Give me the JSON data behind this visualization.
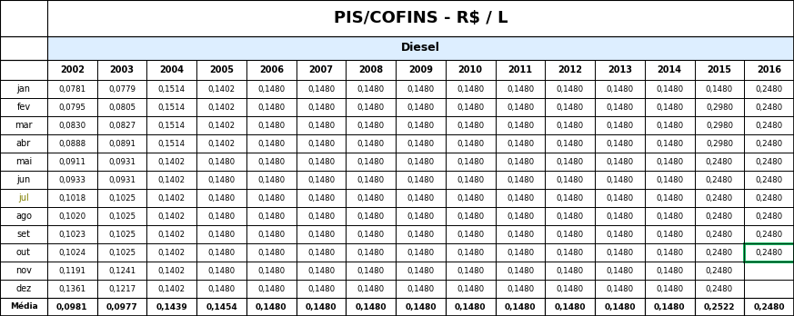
{
  "title": "PIS/COFINS - R$ / L",
  "subtitle": "Diesel",
  "years": [
    "2002",
    "2003",
    "2004",
    "2005",
    "2006",
    "2007",
    "2008",
    "2009",
    "2010",
    "2011",
    "2012",
    "2013",
    "2014",
    "2015",
    "2016"
  ],
  "months": [
    "jan",
    "fev",
    "mar",
    "abr",
    "mai",
    "jun",
    "jul",
    "ago",
    "set",
    "out",
    "nov",
    "dez"
  ],
  "media_label": "Média",
  "data": {
    "jan": [
      "0,0781",
      "0,0779",
      "0,1514",
      "0,1402",
      "0,1480",
      "0,1480",
      "0,1480",
      "0,1480",
      "0,1480",
      "0,1480",
      "0,1480",
      "0,1480",
      "0,1480",
      "0,1480",
      "0,2480"
    ],
    "fev": [
      "0,0795",
      "0,0805",
      "0,1514",
      "0,1402",
      "0,1480",
      "0,1480",
      "0,1480",
      "0,1480",
      "0,1480",
      "0,1480",
      "0,1480",
      "0,1480",
      "0,1480",
      "0,2980",
      "0,2480"
    ],
    "mar": [
      "0,0830",
      "0,0827",
      "0,1514",
      "0,1402",
      "0,1480",
      "0,1480",
      "0,1480",
      "0,1480",
      "0,1480",
      "0,1480",
      "0,1480",
      "0,1480",
      "0,1480",
      "0,2980",
      "0,2480"
    ],
    "abr": [
      "0,0888",
      "0,0891",
      "0,1514",
      "0,1402",
      "0,1480",
      "0,1480",
      "0,1480",
      "0,1480",
      "0,1480",
      "0,1480",
      "0,1480",
      "0,1480",
      "0,1480",
      "0,2980",
      "0,2480"
    ],
    "mai": [
      "0,0911",
      "0,0931",
      "0,1402",
      "0,1480",
      "0,1480",
      "0,1480",
      "0,1480",
      "0,1480",
      "0,1480",
      "0,1480",
      "0,1480",
      "0,1480",
      "0,1480",
      "0,2480",
      "0,2480"
    ],
    "jun": [
      "0,0933",
      "0,0931",
      "0,1402",
      "0,1480",
      "0,1480",
      "0,1480",
      "0,1480",
      "0,1480",
      "0,1480",
      "0,1480",
      "0,1480",
      "0,1480",
      "0,1480",
      "0,2480",
      "0,2480"
    ],
    "jul": [
      "0,1018",
      "0,1025",
      "0,1402",
      "0,1480",
      "0,1480",
      "0,1480",
      "0,1480",
      "0,1480",
      "0,1480",
      "0,1480",
      "0,1480",
      "0,1480",
      "0,1480",
      "0,2480",
      "0,2480"
    ],
    "ago": [
      "0,1020",
      "0,1025",
      "0,1402",
      "0,1480",
      "0,1480",
      "0,1480",
      "0,1480",
      "0,1480",
      "0,1480",
      "0,1480",
      "0,1480",
      "0,1480",
      "0,1480",
      "0,2480",
      "0,2480"
    ],
    "set": [
      "0,1023",
      "0,1025",
      "0,1402",
      "0,1480",
      "0,1480",
      "0,1480",
      "0,1480",
      "0,1480",
      "0,1480",
      "0,1480",
      "0,1480",
      "0,1480",
      "0,1480",
      "0,2480",
      "0,2480"
    ],
    "out": [
      "0,1024",
      "0,1025",
      "0,1402",
      "0,1480",
      "0,1480",
      "0,1480",
      "0,1480",
      "0,1480",
      "0,1480",
      "0,1480",
      "0,1480",
      "0,1480",
      "0,1480",
      "0,2480",
      "0,2480"
    ],
    "nov": [
      "0,1191",
      "0,1241",
      "0,1402",
      "0,1480",
      "0,1480",
      "0,1480",
      "0,1480",
      "0,1480",
      "0,1480",
      "0,1480",
      "0,1480",
      "0,1480",
      "0,1480",
      "0,2480",
      ""
    ],
    "dez": [
      "0,1361",
      "0,1217",
      "0,1402",
      "0,1480",
      "0,1480",
      "0,1480",
      "0,1480",
      "0,1480",
      "0,1480",
      "0,1480",
      "0,1480",
      "0,1480",
      "0,1480",
      "0,2480",
      ""
    ]
  },
  "media": [
    "0,0981",
    "0,0977",
    "0,1439",
    "0,1454",
    "0,1480",
    "0,1480",
    "0,1480",
    "0,1480",
    "0,1480",
    "0,1480",
    "0,1480",
    "0,1480",
    "0,1480",
    "0,2522",
    "0,2480"
  ],
  "title_bg": "#ffffff",
  "subtitle_bg": "#ddeeff",
  "header_bg": "#ffffff",
  "data_bg": "#ffffff",
  "highlight_color": "#00b050",
  "jul_color": "#808000",
  "title_fontsize": 13,
  "subtitle_fontsize": 9,
  "header_fontsize": 7,
  "data_fontsize": 6.2,
  "media_fontsize": 6.5,
  "month_label_fontsize": 7
}
